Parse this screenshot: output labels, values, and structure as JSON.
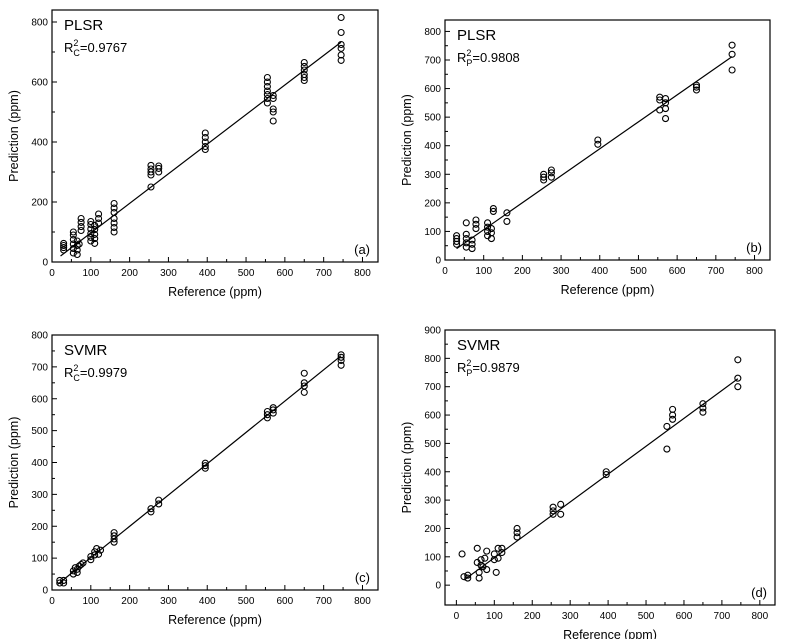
{
  "chart_data": [
    {
      "type": "scatter",
      "panel": "(a)",
      "method": "PLSR",
      "r2_symbol": "R",
      "r2_sup": "2",
      "r2_sub": "C",
      "r2_value": "=0.9767",
      "xlabel": "Reference (ppm)",
      "ylabel": "Prediction (ppm)",
      "xlim": [
        0,
        840
      ],
      "ylim": [
        0,
        840
      ],
      "xticks": [
        0,
        100,
        200,
        300,
        400,
        500,
        600,
        700,
        800
      ],
      "yticks": [
        0,
        200,
        400,
        600,
        800
      ],
      "fit_line": [
        [
          22,
          20
        ],
        [
          745,
          733
        ]
      ],
      "points": [
        [
          30,
          40
        ],
        [
          30,
          48
        ],
        [
          30,
          55
        ],
        [
          30,
          62
        ],
        [
          55,
          30
        ],
        [
          55,
          45
        ],
        [
          55,
          60
        ],
        [
          55,
          75
        ],
        [
          55,
          90
        ],
        [
          55,
          100
        ],
        [
          65,
          25
        ],
        [
          65,
          40
        ],
        [
          65,
          55
        ],
        [
          65,
          70
        ],
        [
          70,
          60
        ],
        [
          75,
          105
        ],
        [
          75,
          118
        ],
        [
          75,
          132
        ],
        [
          75,
          145
        ],
        [
          100,
          70
        ],
        [
          100,
          82
        ],
        [
          100,
          95
        ],
        [
          100,
          110
        ],
        [
          100,
          125
        ],
        [
          100,
          135
        ],
        [
          110,
          62
        ],
        [
          110,
          78
        ],
        [
          110,
          92
        ],
        [
          110,
          108
        ],
        [
          110,
          122
        ],
        [
          120,
          130
        ],
        [
          120,
          145
        ],
        [
          120,
          160
        ],
        [
          160,
          100
        ],
        [
          160,
          115
        ],
        [
          160,
          130
        ],
        [
          160,
          145
        ],
        [
          160,
          165
        ],
        [
          160,
          180
        ],
        [
          160,
          195
        ],
        [
          255,
          250
        ],
        [
          255,
          290
        ],
        [
          255,
          300
        ],
        [
          255,
          310
        ],
        [
          255,
          322
        ],
        [
          275,
          300
        ],
        [
          275,
          312
        ],
        [
          275,
          320
        ],
        [
          395,
          375
        ],
        [
          395,
          385
        ],
        [
          395,
          400
        ],
        [
          395,
          415
        ],
        [
          395,
          430
        ],
        [
          555,
          530
        ],
        [
          555,
          545
        ],
        [
          555,
          558
        ],
        [
          555,
          570
        ],
        [
          555,
          585
        ],
        [
          555,
          600
        ],
        [
          555,
          615
        ],
        [
          570,
          470
        ],
        [
          570,
          500
        ],
        [
          570,
          510
        ],
        [
          570,
          545
        ],
        [
          570,
          555
        ],
        [
          650,
          605
        ],
        [
          650,
          615
        ],
        [
          650,
          625
        ],
        [
          650,
          640
        ],
        [
          650,
          652
        ],
        [
          650,
          665
        ],
        [
          745,
          672
        ],
        [
          745,
          690
        ],
        [
          745,
          712
        ],
        [
          745,
          725
        ],
        [
          745,
          765
        ],
        [
          745,
          815
        ]
      ]
    },
    {
      "type": "scatter",
      "panel": "(b)",
      "method": "PLSR",
      "r2_symbol": "R",
      "r2_sup": "2",
      "r2_sub": "P",
      "r2_value": "=0.9808",
      "xlabel": "Reference (ppm)",
      "ylabel": "Prediction (ppm)",
      "xlim": [
        0,
        840
      ],
      "ylim": [
        0,
        840
      ],
      "xticks": [
        0,
        100,
        200,
        300,
        400,
        500,
        600,
        700,
        800
      ],
      "yticks": [
        0,
        100,
        200,
        300,
        400,
        500,
        600,
        700,
        800
      ],
      "fit_line": [
        [
          30,
          40
        ],
        [
          742,
          712
        ]
      ],
      "points": [
        [
          30,
          55
        ],
        [
          30,
          65
        ],
        [
          30,
          75
        ],
        [
          30,
          85
        ],
        [
          55,
          45
        ],
        [
          55,
          60
        ],
        [
          55,
          75
        ],
        [
          55,
          90
        ],
        [
          55,
          130
        ],
        [
          70,
          40
        ],
        [
          70,
          55
        ],
        [
          70,
          70
        ],
        [
          80,
          110
        ],
        [
          80,
          125
        ],
        [
          80,
          140
        ],
        [
          110,
          85
        ],
        [
          110,
          100
        ],
        [
          110,
          115
        ],
        [
          110,
          130
        ],
        [
          120,
          75
        ],
        [
          120,
          95
        ],
        [
          120,
          110
        ],
        [
          125,
          170
        ],
        [
          125,
          180
        ],
        [
          160,
          135
        ],
        [
          160,
          165
        ],
        [
          255,
          280
        ],
        [
          255,
          290
        ],
        [
          255,
          300
        ],
        [
          275,
          290
        ],
        [
          275,
          305
        ],
        [
          275,
          315
        ],
        [
          395,
          405
        ],
        [
          395,
          420
        ],
        [
          555,
          525
        ],
        [
          555,
          560
        ],
        [
          555,
          570
        ],
        [
          570,
          495
        ],
        [
          570,
          530
        ],
        [
          570,
          550
        ],
        [
          570,
          565
        ],
        [
          650,
          595
        ],
        [
          650,
          605
        ],
        [
          650,
          612
        ],
        [
          742,
          665
        ],
        [
          742,
          720
        ],
        [
          742,
          752
        ]
      ]
    },
    {
      "type": "scatter",
      "panel": "(c)",
      "method": "SVMR",
      "r2_symbol": "R",
      "r2_sup": "2",
      "r2_sub": "C",
      "r2_value": "=0.9979",
      "xlabel": "Reference (ppm)",
      "ylabel": "Prediction (ppm)",
      "xlim": [
        0,
        840
      ],
      "ylim": [
        0,
        800
      ],
      "xticks": [
        0,
        100,
        200,
        300,
        400,
        500,
        600,
        700,
        800
      ],
      "yticks": [
        0,
        100,
        200,
        300,
        400,
        500,
        600,
        700,
        800
      ],
      "fit_line": [
        [
          15,
          18
        ],
        [
          745,
          735
        ]
      ],
      "points": [
        [
          20,
          22
        ],
        [
          20,
          30
        ],
        [
          30,
          22
        ],
        [
          30,
          30
        ],
        [
          55,
          50
        ],
        [
          55,
          60
        ],
        [
          60,
          70
        ],
        [
          65,
          55
        ],
        [
          65,
          65
        ],
        [
          70,
          75
        ],
        [
          75,
          80
        ],
        [
          80,
          85
        ],
        [
          100,
          95
        ],
        [
          100,
          105
        ],
        [
          110,
          110
        ],
        [
          110,
          120
        ],
        [
          115,
          130
        ],
        [
          120,
          112
        ],
        [
          125,
          125
        ],
        [
          160,
          150
        ],
        [
          160,
          160
        ],
        [
          160,
          170
        ],
        [
          160,
          180
        ],
        [
          255,
          245
        ],
        [
          255,
          255
        ],
        [
          275,
          270
        ],
        [
          275,
          282
        ],
        [
          395,
          382
        ],
        [
          395,
          390
        ],
        [
          395,
          398
        ],
        [
          555,
          540
        ],
        [
          555,
          550
        ],
        [
          555,
          560
        ],
        [
          570,
          555
        ],
        [
          570,
          565
        ],
        [
          570,
          572
        ],
        [
          650,
          620
        ],
        [
          650,
          640
        ],
        [
          650,
          650
        ],
        [
          650,
          680
        ],
        [
          745,
          705
        ],
        [
          745,
          720
        ],
        [
          745,
          730
        ],
        [
          745,
          738
        ]
      ]
    },
    {
      "type": "scatter",
      "panel": "(d)",
      "method": "SVMR",
      "r2_symbol": "R",
      "r2_sup": "2",
      "r2_sub": "P",
      "r2_value": "=0.9879",
      "xlabel": "Reference (ppm)",
      "ylabel": "Prediction (ppm)",
      "xlim": [
        -30,
        840
      ],
      "ylim": [
        -70,
        900
      ],
      "xticks": [
        0,
        100,
        200,
        300,
        400,
        500,
        600,
        700,
        800
      ],
      "yticks": [
        0,
        100,
        200,
        300,
        400,
        500,
        600,
        700,
        800,
        900
      ],
      "fit_line": [
        [
          20,
          18
        ],
        [
          742,
          728
        ]
      ],
      "points": [
        [
          15,
          110
        ],
        [
          20,
          30
        ],
        [
          30,
          25
        ],
        [
          30,
          35
        ],
        [
          55,
          80
        ],
        [
          55,
          130
        ],
        [
          60,
          25
        ],
        [
          60,
          45
        ],
        [
          65,
          70
        ],
        [
          65,
          90
        ],
        [
          70,
          65
        ],
        [
          75,
          95
        ],
        [
          80,
          55
        ],
        [
          80,
          120
        ],
        [
          100,
          90
        ],
        [
          100,
          110
        ],
        [
          105,
          45
        ],
        [
          110,
          95
        ],
        [
          110,
          130
        ],
        [
          120,
          115
        ],
        [
          120,
          130
        ],
        [
          160,
          170
        ],
        [
          160,
          185
        ],
        [
          160,
          200
        ],
        [
          255,
          250
        ],
        [
          255,
          262
        ],
        [
          255,
          275
        ],
        [
          275,
          250
        ],
        [
          275,
          285
        ],
        [
          395,
          390
        ],
        [
          395,
          400
        ],
        [
          555,
          480
        ],
        [
          555,
          560
        ],
        [
          570,
          585
        ],
        [
          570,
          600
        ],
        [
          570,
          620
        ],
        [
          650,
          610
        ],
        [
          650,
          625
        ],
        [
          650,
          640
        ],
        [
          742,
          700
        ],
        [
          742,
          730
        ],
        [
          742,
          795
        ]
      ]
    }
  ]
}
